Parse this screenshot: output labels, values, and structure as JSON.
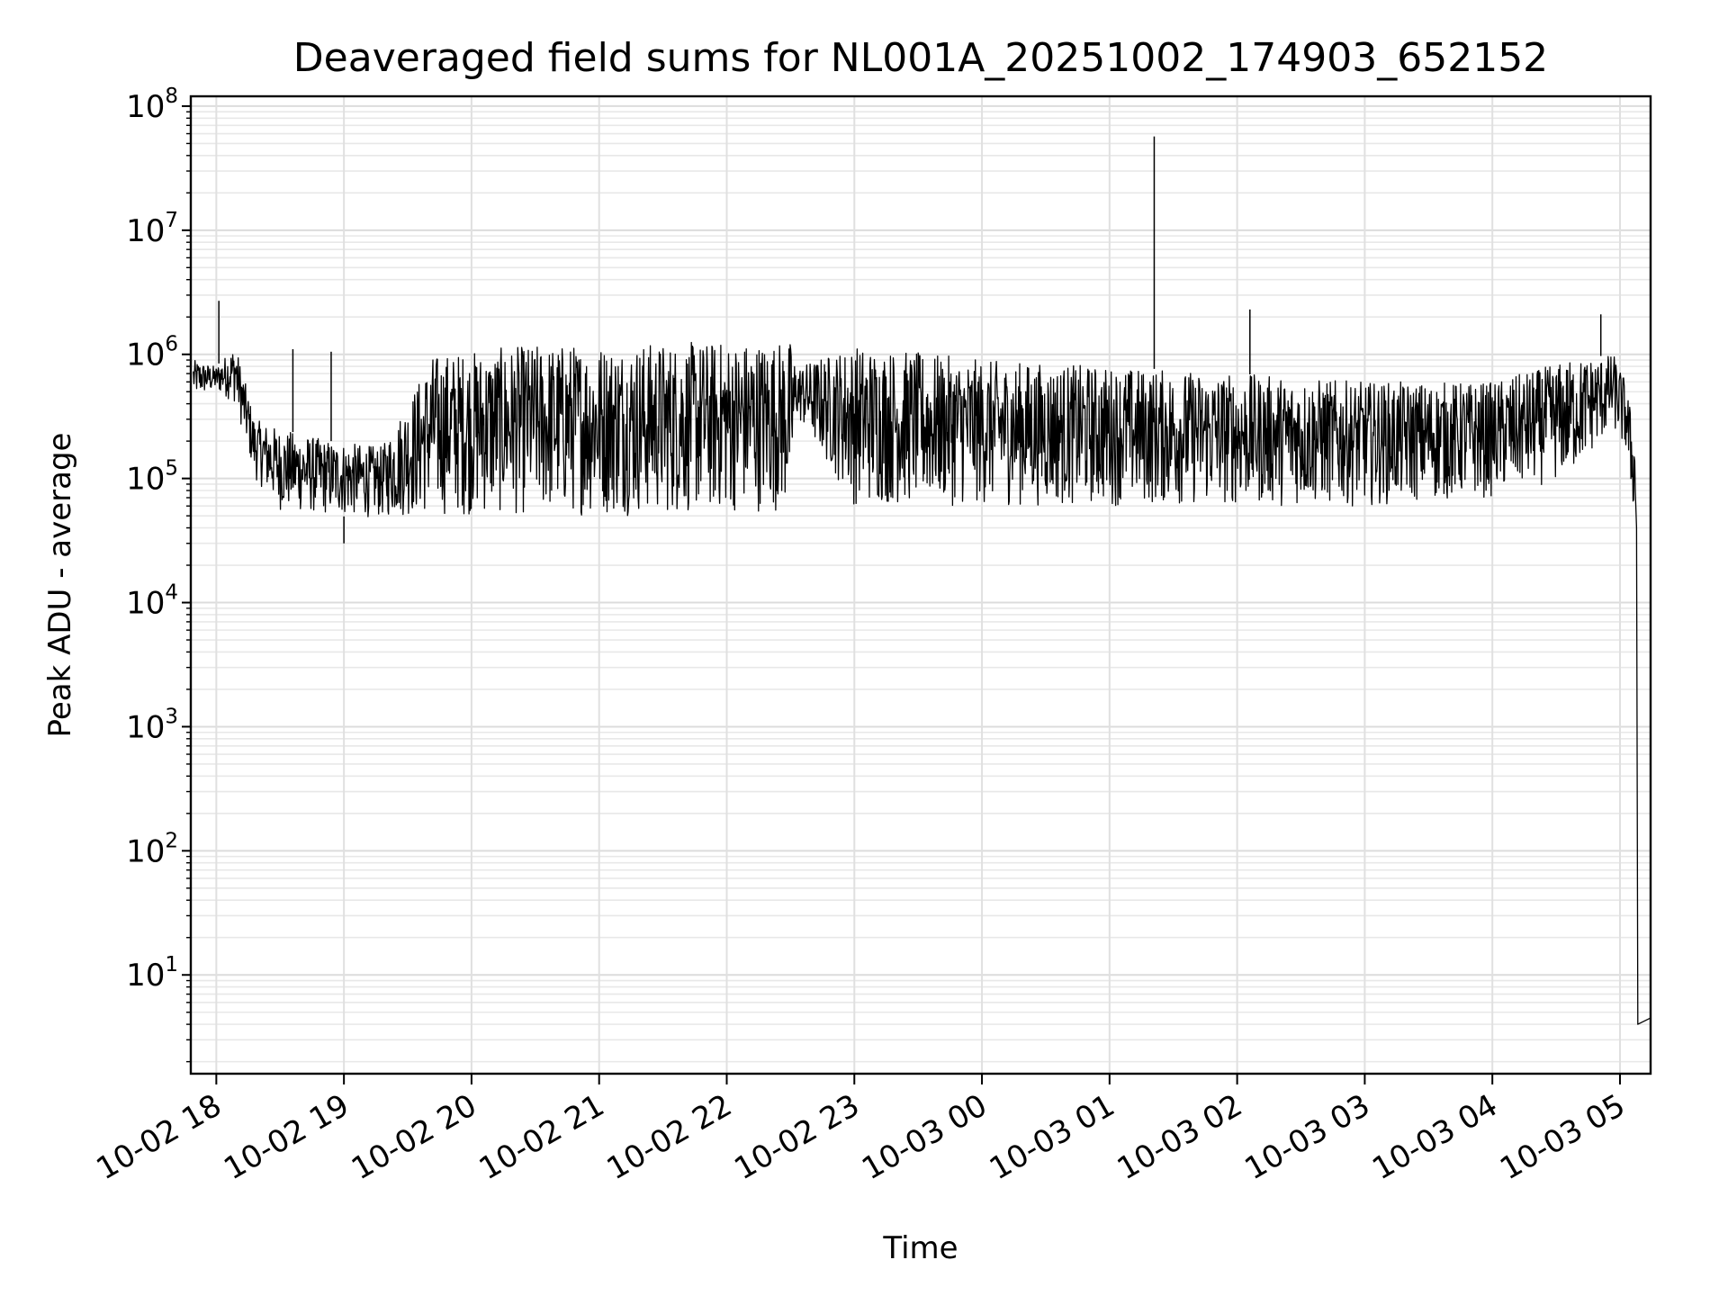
{
  "chart_data": {
    "type": "line",
    "title": "Deaveraged field sums for NL001A_20251002_174903_652152",
    "xlabel": "Time",
    "ylabel": "Peak ADU - average",
    "yscale": "log",
    "ylim": [
      1.6,
      120000000
    ],
    "xlim_hours": [
      -0.2,
      11.24
    ],
    "grid": true,
    "x_ticks": [
      {
        "hour": 0,
        "label": "10-02 18"
      },
      {
        "hour": 1,
        "label": "10-02 19"
      },
      {
        "hour": 2,
        "label": "10-02 20"
      },
      {
        "hour": 3,
        "label": "10-02 21"
      },
      {
        "hour": 4,
        "label": "10-02 22"
      },
      {
        "hour": 5,
        "label": "10-02 23"
      },
      {
        "hour": 6,
        "label": "10-03 00"
      },
      {
        "hour": 7,
        "label": "10-03 01"
      },
      {
        "hour": 8,
        "label": "10-03 02"
      },
      {
        "hour": 9,
        "label": "10-03 03"
      },
      {
        "hour": 10,
        "label": "10-03 04"
      },
      {
        "hour": 11,
        "label": "10-03 05"
      }
    ],
    "y_ticks": [
      {
        "value": 10,
        "base": "10",
        "exp": "1"
      },
      {
        "value": 100,
        "base": "10",
        "exp": "2"
      },
      {
        "value": 1000,
        "base": "10",
        "exp": "3"
      },
      {
        "value": 10000,
        "base": "10",
        "exp": "4"
      },
      {
        "value": 100000,
        "base": "10",
        "exp": "5"
      },
      {
        "value": 1000000,
        "base": "10",
        "exp": "6"
      },
      {
        "value": 10000000,
        "base": "10",
        "exp": "7"
      },
      {
        "value": 100000000,
        "base": "10",
        "exp": "8"
      }
    ],
    "series": [
      {
        "name": "Deaveraged field sum",
        "color": "#000000",
        "envelope": [
          {
            "hour": -0.18,
            "low": 450000,
            "high": 900000
          },
          {
            "hour": 0.0,
            "low": 500000,
            "high": 800000
          },
          {
            "hour": 0.15,
            "low": 400000,
            "high": 1200000
          },
          {
            "hour": 0.3,
            "low": 100000,
            "high": 300000
          },
          {
            "hour": 0.5,
            "low": 55000,
            "high": 250000
          },
          {
            "hour": 0.9,
            "low": 50000,
            "high": 200000
          },
          {
            "hour": 1.3,
            "low": 48000,
            "high": 180000
          },
          {
            "hour": 1.7,
            "low": 50000,
            "high": 1000000
          },
          {
            "hour": 2.5,
            "low": 50000,
            "high": 1200000
          },
          {
            "hour": 3.5,
            "low": 50000,
            "high": 1250000
          },
          {
            "hour": 4.5,
            "low": 55000,
            "high": 1300000
          },
          {
            "hour": 4.55,
            "low": 300000,
            "high": 800000
          },
          {
            "hour": 5.0,
            "low": 60000,
            "high": 1200000
          },
          {
            "hour": 6.0,
            "low": 60000,
            "high": 900000
          },
          {
            "hour": 7.0,
            "low": 60000,
            "high": 800000
          },
          {
            "hour": 8.0,
            "low": 60000,
            "high": 700000
          },
          {
            "hour": 9.0,
            "low": 60000,
            "high": 600000
          },
          {
            "hour": 10.0,
            "low": 70000,
            "high": 600000
          },
          {
            "hour": 10.6,
            "low": 100000,
            "high": 900000
          },
          {
            "hour": 10.95,
            "low": 250000,
            "high": 1000000
          },
          {
            "hour": 11.05,
            "low": 150000,
            "high": 600000
          },
          {
            "hour": 11.12,
            "low": 40000,
            "high": 200000
          }
        ],
        "spikes": [
          {
            "hour": 0.02,
            "value": 2700000
          },
          {
            "hour": 0.6,
            "value": 1100000
          },
          {
            "hour": 0.9,
            "value": 1050000
          },
          {
            "hour": 7.35,
            "value": 57000000
          },
          {
            "hour": 8.1,
            "value": 2300000
          },
          {
            "hour": 10.85,
            "value": 2100000
          },
          {
            "hour": 1.0,
            "value": 30000
          }
        ],
        "tail": [
          {
            "hour": 11.13,
            "value": 40000
          },
          {
            "hour": 11.14,
            "value": 4
          },
          {
            "hour": 11.24,
            "value": 4.5
          }
        ]
      }
    ]
  }
}
